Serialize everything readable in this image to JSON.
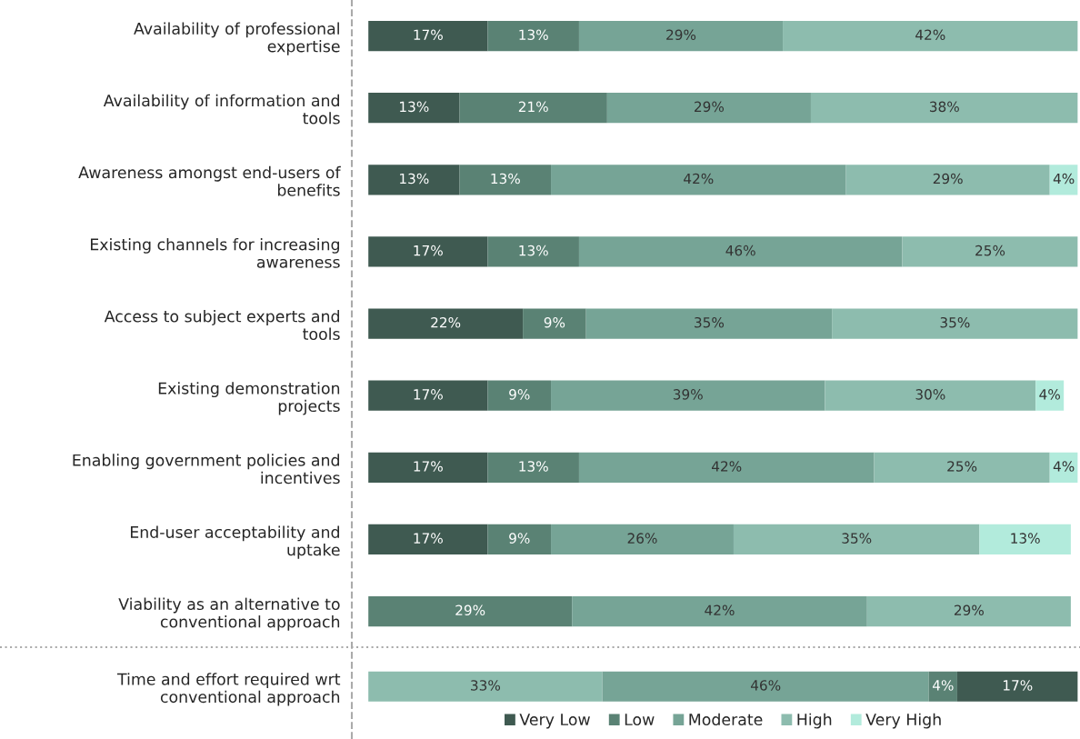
{
  "chart_data": [
    {
      "type": "bar",
      "orientation": "horizontal",
      "stacked": true,
      "legend": "bottom",
      "grid": false,
      "tick_labels": "y",
      "categories": [
        "Availability of professional\nexpertise",
        "Availability of information and\ntools",
        "Awareness amongst end-users of\nbenefits",
        "Existing channels for increasing\nawareness",
        "Access to subject experts and\ntools",
        "Existing demonstration\nprojects",
        "Enabling government policies and\nincentives",
        "End-user acceptability and\nuptake",
        "Viability as an alternative to\nconventional approach"
      ],
      "series": [
        {
          "name": "Very Low",
          "color": "#3f5a51",
          "values": [
            17,
            13,
            13,
            17,
            22,
            17,
            17,
            17,
            null
          ],
          "value_labels": [
            "17%",
            "13%",
            "13%",
            "17%",
            "22%",
            "17%",
            "17%",
            "17%",
            null
          ]
        },
        {
          "name": "Low",
          "color": "#5a8274",
          "values": [
            13,
            21,
            13,
            13,
            9,
            9,
            13,
            9,
            29
          ],
          "value_labels": [
            "13%",
            "21%",
            "13%",
            "13%",
            "9%",
            "9%",
            "13%",
            "9%",
            "29%"
          ]
        },
        {
          "name": "Moderate",
          "color": "#76a496",
          "values": [
            29,
            29,
            42,
            46,
            35,
            39,
            42,
            26,
            42
          ],
          "value_labels": [
            "29%",
            "29%",
            "42%",
            "46%",
            "35%",
            "39%",
            "42%",
            "26%",
            "42%"
          ]
        },
        {
          "name": "High",
          "color": "#8dbcae",
          "values": [
            42,
            38,
            29,
            25,
            35,
            30,
            25,
            35,
            29
          ],
          "value_labels": [
            "42%",
            "38%",
            "29%",
            "25%",
            "35%",
            "30%",
            "25%",
            "35%",
            "29%"
          ]
        },
        {
          "name": "Very High",
          "color": "#b2ebdc",
          "values": [
            null,
            null,
            4,
            null,
            null,
            4,
            4,
            13,
            null
          ],
          "value_labels": [
            null,
            null,
            "4%",
            null,
            null,
            "4%",
            "4%",
            "13%",
            null
          ]
        }
      ]
    },
    {
      "type": "bar",
      "orientation": "horizontal",
      "stacked": true,
      "grid": false,
      "tick_labels": "y",
      "categories": [
        "Time and effort required wrt\nconventional approach"
      ],
      "series": [
        {
          "color": "#8dbcae",
          "values": [
            33
          ],
          "value_labels": [
            "33%"
          ]
        },
        {
          "color": "#76a496",
          "values": [
            46
          ],
          "value_labels": [
            "46%"
          ]
        },
        {
          "color": "#5a8274",
          "values": [
            4
          ],
          "value_labels": [
            "4%"
          ]
        },
        {
          "color": "#3f5a51",
          "values": [
            17
          ],
          "value_labels": [
            "17%"
          ]
        }
      ]
    }
  ]
}
